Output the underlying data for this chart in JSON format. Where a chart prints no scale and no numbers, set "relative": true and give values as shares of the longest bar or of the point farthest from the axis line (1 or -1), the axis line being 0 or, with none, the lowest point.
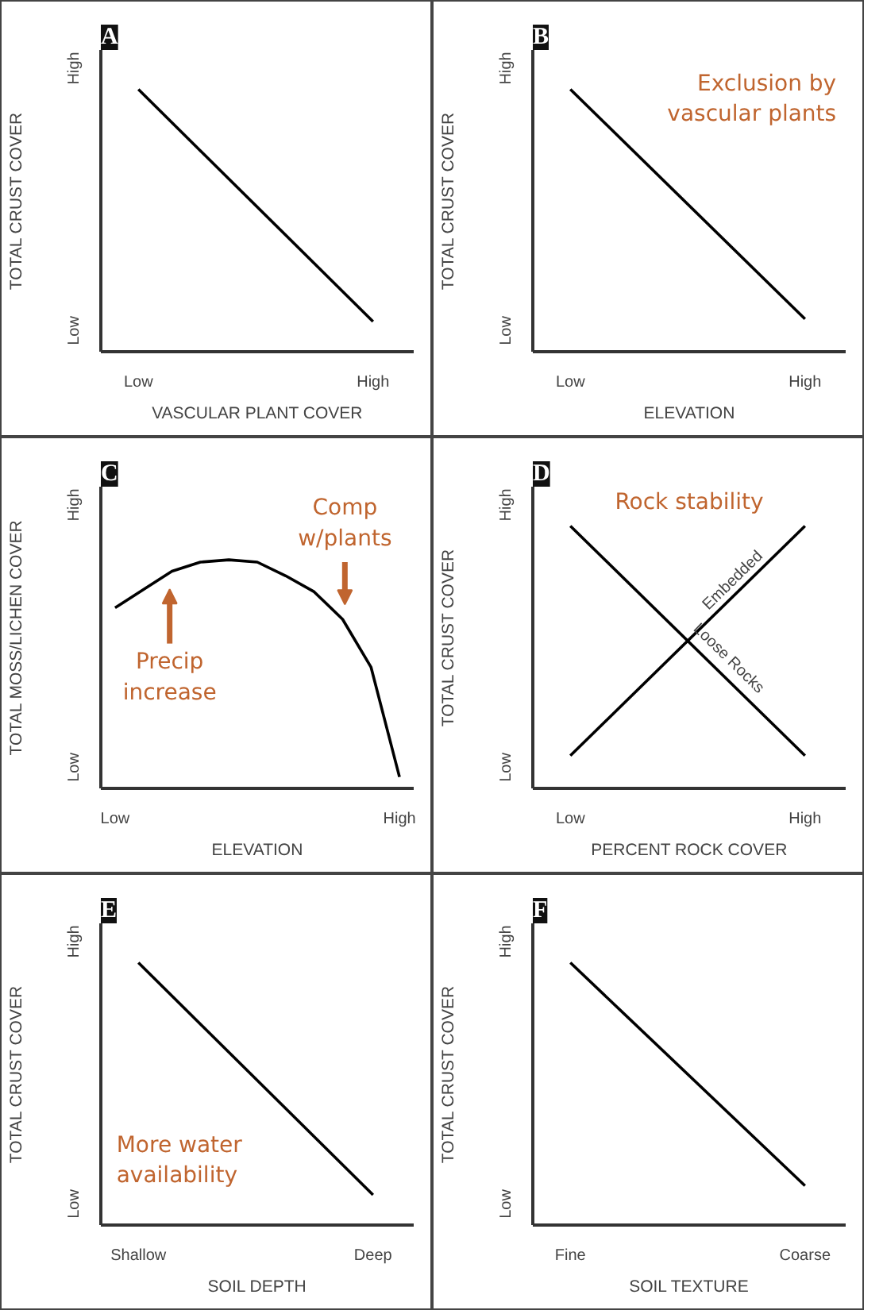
{
  "chart_data": [
    {
      "type": "line",
      "relative": true,
      "title": "A",
      "xlabel": "VASCULAR PLANT COVER",
      "ylabel": "TOTAL CRUST COVER",
      "categories": [
        "Low",
        "High"
      ],
      "grid": false,
      "legend": false,
      "annotations": [
        "Low",
        "High"
      ],
      "series": [
        {
          "color": "#000000",
          "values": [
            1,
            0.115
          ]
        }
      ]
    },
    {
      "type": "line",
      "relative": true,
      "title": "B",
      "xlabel": "ELEVATION",
      "ylabel": "TOTAL CRUST COVER",
      "categories": [
        "Low",
        "High"
      ],
      "grid": false,
      "legend": false,
      "annotations": [
        "Low",
        "High",
        "Exclusion by\nvascular plants"
      ],
      "series": [
        {
          "color": "#000000",
          "values": [
            1,
            0.125
          ]
        }
      ]
    },
    {
      "type": "line",
      "relative": true,
      "title": "C",
      "xlabel": "ELEVATION",
      "ylabel": "TOTAL MOSS/LICHEN COVER",
      "categories": [
        "Low",
        null,
        null,
        null,
        null,
        null,
        null,
        null,
        null,
        null,
        "High"
      ],
      "grid": false,
      "legend": false,
      "annotations": [
        "Low",
        "High",
        "Precip\nincrease",
        "Comp\nw/plants"
      ],
      "series": [
        {
          "color": "#000000",
          "values": [
            0.79,
            0.87,
            0.95,
            0.99,
            1,
            0.99,
            0.93,
            0.86,
            0.74,
            0.53,
            0.05
          ]
        }
      ]
    },
    {
      "type": "line",
      "relative": true,
      "title": "D",
      "xlabel": "PERCENT ROCK COVER",
      "ylabel": "TOTAL CRUST COVER",
      "categories": [
        "Low",
        "High"
      ],
      "grid": false,
      "legend": false,
      "annotations": [
        "Low",
        "High",
        "Rock stability"
      ],
      "series": [
        {
          "name": "Embedded",
          "color": "#000000",
          "values": [
            0.125,
            1
          ]
        },
        {
          "name": "Loose Rocks",
          "color": "#000000",
          "values": [
            1,
            0.125
          ]
        }
      ]
    },
    {
      "type": "line",
      "relative": true,
      "title": "E",
      "xlabel": "SOIL DEPTH",
      "ylabel": "TOTAL CRUST COVER",
      "categories": [
        "Shallow",
        "Deep"
      ],
      "grid": false,
      "legend": false,
      "annotations": [
        "Low",
        "High",
        "More water\navailability"
      ],
      "series": [
        {
          "color": "#000000",
          "values": [
            1,
            0.115
          ]
        }
      ]
    },
    {
      "type": "line",
      "relative": true,
      "title": "F",
      "xlabel": "SOIL TEXTURE",
      "ylabel": "TOTAL CRUST COVER",
      "categories": [
        "Fine",
        "Coarse"
      ],
      "grid": false,
      "legend": false,
      "annotations": [
        "Low",
        "High"
      ],
      "series": [
        {
          "color": "#000000",
          "values": [
            1,
            0.15
          ]
        }
      ]
    }
  ]
}
